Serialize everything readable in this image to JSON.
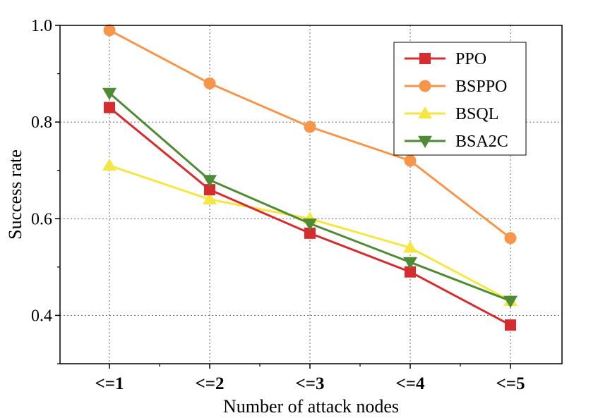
{
  "chart_data": {
    "type": "line",
    "title": "",
    "xlabel": "Number of attack nodes",
    "ylabel": "Success rate",
    "categories": [
      "<=1",
      "<=2",
      "<=3",
      "<=4",
      "<=5"
    ],
    "ylim": [
      0.3,
      1.0
    ],
    "yticks": [
      "0.4",
      "0.6",
      "0.8",
      "1.0"
    ],
    "ytick_values": [
      0.4,
      0.6,
      0.8,
      1.0
    ],
    "grid": true,
    "legend_position": "top-right",
    "series": [
      {
        "name": "PPO",
        "marker": "square",
        "color": "#d62b2f",
        "values": [
          0.83,
          0.66,
          0.57,
          0.49,
          0.38
        ]
      },
      {
        "name": "BSPPO",
        "marker": "circle",
        "color": "#f7964a",
        "values": [
          0.99,
          0.88,
          0.79,
          0.72,
          0.56
        ]
      },
      {
        "name": "BSQL",
        "marker": "triangle-up",
        "color": "#f5e642",
        "values": [
          0.71,
          0.64,
          0.6,
          0.54,
          0.43
        ]
      },
      {
        "name": "BSA2C",
        "marker": "triangle-down",
        "color": "#4e8b34",
        "values": [
          0.86,
          0.68,
          0.59,
          0.51,
          0.43
        ]
      }
    ]
  }
}
